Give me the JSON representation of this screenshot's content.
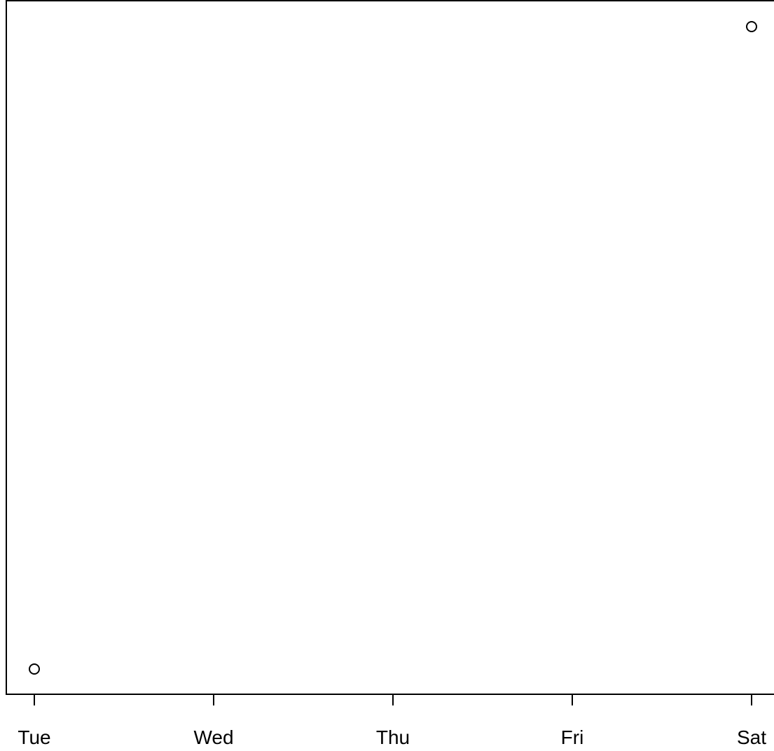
{
  "chart_data": {
    "type": "scatter",
    "title": "",
    "xlabel": "",
    "ylabel": "",
    "x_tick_labels": [
      "Tue",
      "Wed",
      "Thu",
      "Fri",
      "Sat"
    ],
    "xlim": [
      0,
      4
    ],
    "ylim": [
      0,
      1
    ],
    "points": [
      {
        "x": "Tue",
        "y": 0
      },
      {
        "x": "Sat",
        "y": 1
      }
    ],
    "y_axis_ticks_shown": false,
    "grid": false,
    "legend": "none",
    "marker": "open-circle",
    "marker_color": "#000000"
  }
}
